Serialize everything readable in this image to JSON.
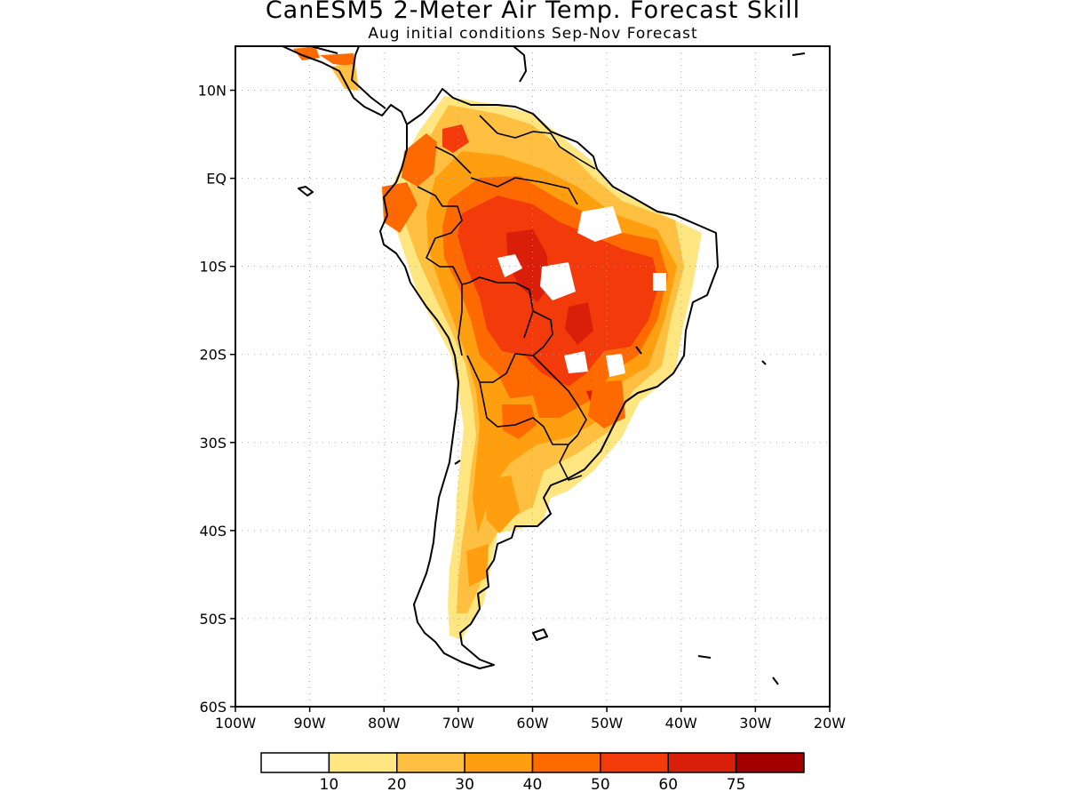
{
  "title": "CanESM5 2-Meter Air Temp. Forecast Skill",
  "subtitle": "Aug initial conditions  Sep-Nov Forecast",
  "map": {
    "lon_range": [
      -100,
      -20
    ],
    "lat_range": [
      -60,
      15
    ],
    "lat_labels": [
      "10N",
      "EQ",
      "10S",
      "20S",
      "30S",
      "40S",
      "50S",
      "60S"
    ],
    "lat_values": [
      10,
      0,
      -10,
      -20,
      -30,
      -40,
      -50,
      -60
    ],
    "lon_labels": [
      "100W",
      "90W",
      "80W",
      "70W",
      "60W",
      "50W",
      "40W",
      "30W",
      "20W"
    ],
    "lon_values": [
      -100,
      -90,
      -80,
      -70,
      -60,
      -50,
      -40,
      -30,
      -20
    ],
    "gridlines": "dotted"
  },
  "colorbar": {
    "colors": [
      "#ffffff",
      "#ffe680",
      "#ffbf40",
      "#ff9f10",
      "#ff6a00",
      "#f23a0a",
      "#d91e0a",
      "#a50000"
    ],
    "tick_labels": [
      "10",
      "20",
      "30",
      "40",
      "50",
      "60",
      "75"
    ]
  }
}
